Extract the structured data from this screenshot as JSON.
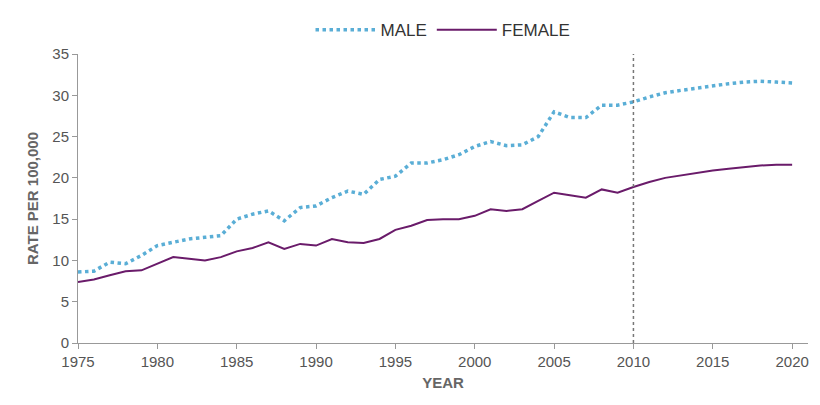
{
  "chart_data": {
    "type": "line",
    "x_label": "YEAR",
    "y_label": "RATE PER 100,000",
    "x": [
      1975,
      1976,
      1977,
      1978,
      1979,
      1980,
      1981,
      1982,
      1983,
      1984,
      1985,
      1986,
      1987,
      1988,
      1989,
      1990,
      1991,
      1992,
      1993,
      1994,
      1995,
      1996,
      1997,
      1998,
      1999,
      2000,
      2001,
      2002,
      2003,
      2004,
      2005,
      2006,
      2007,
      2008,
      2009,
      2010,
      2011,
      2012,
      2013,
      2014,
      2015,
      2016,
      2017,
      2018,
      2019,
      2020
    ],
    "series": [
      {
        "name": "MALE",
        "color": "#5aaed6",
        "line_style": "dotted",
        "values": [
          8.6,
          8.7,
          9.8,
          9.6,
          10.6,
          11.8,
          12.2,
          12.6,
          12.8,
          13.0,
          15.0,
          15.6,
          16.0,
          14.8,
          16.4,
          16.6,
          17.6,
          18.4,
          18.0,
          19.8,
          20.2,
          21.8,
          21.8,
          22.2,
          22.8,
          23.8,
          24.4,
          23.9,
          24.0,
          25.0,
          28.0,
          27.3,
          27.3,
          28.8,
          28.8,
          29.2,
          29.8,
          30.3,
          30.6,
          30.9,
          31.2,
          31.4,
          31.6,
          31.7,
          31.6,
          31.5
        ]
      },
      {
        "name": "FEMALE",
        "color": "#6a1b6a",
        "line_style": "solid",
        "values": [
          7.4,
          7.7,
          8.2,
          8.7,
          8.8,
          9.6,
          10.4,
          10.2,
          10.0,
          10.4,
          11.1,
          11.5,
          12.2,
          11.4,
          12.0,
          11.8,
          12.6,
          12.2,
          12.1,
          12.6,
          13.7,
          14.2,
          14.9,
          15.0,
          15.0,
          15.4,
          16.2,
          16.0,
          16.2,
          17.2,
          18.2,
          17.9,
          17.6,
          18.6,
          18.2,
          18.9,
          19.5,
          20.0,
          20.3,
          20.6,
          20.9,
          21.1,
          21.3,
          21.5,
          21.6,
          21.6
        ]
      }
    ],
    "xlim": [
      1975,
      2021
    ],
    "xticks": [
      1975,
      1980,
      1985,
      1990,
      1995,
      2000,
      2005,
      2010,
      2015,
      2020
    ],
    "ylim": [
      0,
      35
    ],
    "yticks": [
      0,
      5,
      10,
      15,
      20,
      25,
      30,
      35
    ],
    "vline_x": 2010,
    "grid": false,
    "legend": "top"
  }
}
